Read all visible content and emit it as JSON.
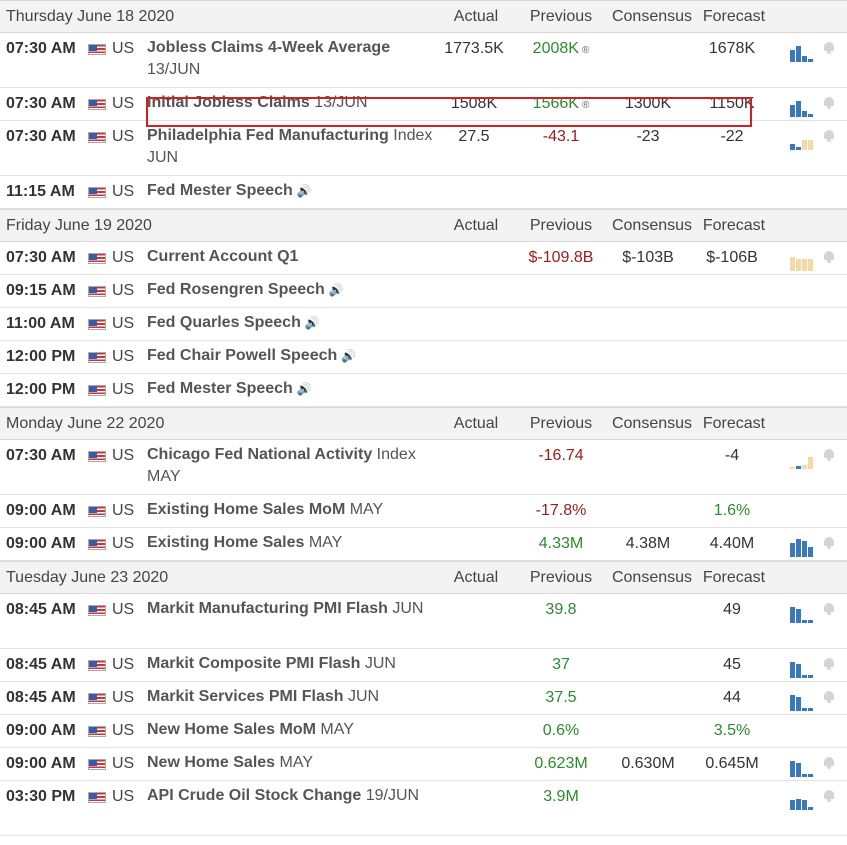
{
  "columns": {
    "actual": "Actual",
    "previous": "Previous",
    "consensus": "Consensus",
    "forecast": "Forecast"
  },
  "sections": [
    {
      "date": "Thursday June 18 2020",
      "rows": [
        {
          "time": "07:30 AM",
          "country": "US",
          "event": "Jobless Claims 4-Week Average",
          "period": "13/JUN",
          "actual": "1773.5K",
          "previous": "2008K",
          "previous_revised": true,
          "previous_sign": "pos",
          "consensus": "",
          "forecast": "1678K",
          "spark": "blue-desc",
          "tall": true
        },
        {
          "time": "07:30 AM",
          "country": "US",
          "event": "Initial Jobless Claims",
          "period": "13/JUN",
          "actual": "1508K",
          "previous": "1566K",
          "previous_revised": true,
          "previous_sign": "pos",
          "consensus": "1300K",
          "forecast": "1150K",
          "spark": "blue-desc",
          "tall": false,
          "highlighted": true
        },
        {
          "time": "07:30 AM",
          "country": "US",
          "event": "Philadelphia Fed Manufacturing",
          "period": "Index JUN",
          "actual": "27.5",
          "previous": "-43.1",
          "previous_sign": "neg",
          "consensus": "-23",
          "forecast": "-22",
          "spark": "beige",
          "tall": true
        },
        {
          "time": "11:15 AM",
          "country": "US",
          "event": "Fed Mester Speech",
          "speech": true,
          "tall": false
        }
      ]
    },
    {
      "date": "Friday June 19 2020",
      "rows": [
        {
          "time": "07:30 AM",
          "country": "US",
          "event": "Current Account Q1",
          "previous": "$-109.8B",
          "previous_sign": "neg",
          "consensus": "$-103B",
          "forecast": "$-106B",
          "spark": "beige-flat",
          "tall": false
        },
        {
          "time": "09:15 AM",
          "country": "US",
          "event": "Fed Rosengren Speech",
          "speech": true,
          "tall": false
        },
        {
          "time": "11:00 AM",
          "country": "US",
          "event": "Fed Quarles Speech",
          "speech": true,
          "tall": false
        },
        {
          "time": "12:00 PM",
          "country": "US",
          "event": "Fed Chair Powell Speech",
          "speech": true,
          "tall": false
        },
        {
          "time": "12:00 PM",
          "country": "US",
          "event": "Fed Mester Speech",
          "speech": true,
          "tall": false
        }
      ]
    },
    {
      "date": "Monday June 22 2020",
      "rows": [
        {
          "time": "07:30 AM",
          "country": "US",
          "event": "Chicago Fed National Activity",
          "period": "Index MAY",
          "previous": "-16.74",
          "previous_sign": "neg",
          "forecast": "-4",
          "spark": "beige-mixed",
          "tall": true
        },
        {
          "time": "09:00 AM",
          "country": "US",
          "event": "Existing Home Sales MoM",
          "period": "MAY",
          "previous": "-17.8%",
          "previous_sign": "neg",
          "forecast": "1.6%",
          "forecast_sign": "pos",
          "tall": false
        },
        {
          "time": "09:00 AM",
          "country": "US",
          "event": "Existing Home Sales",
          "period": "MAY",
          "previous": "4.33M",
          "previous_sign": "pos",
          "consensus": "4.38M",
          "forecast": "4.40M",
          "spark": "blue-high",
          "tall": false
        }
      ]
    },
    {
      "date": "Tuesday June 23 2020",
      "rows": [
        {
          "time": "08:45 AM",
          "country": "US",
          "event": "Markit Manufacturing PMI Flash",
          "period": "JUN",
          "previous": "39.8",
          "previous_sign": "pos",
          "forecast": "49",
          "spark": "blue-drop",
          "tall": true
        },
        {
          "time": "08:45 AM",
          "country": "US",
          "event": "Markit Composite PMI Flash",
          "period": "JUN",
          "previous": "37",
          "previous_sign": "pos",
          "forecast": "45",
          "spark": "blue-drop",
          "tall": false
        },
        {
          "time": "08:45 AM",
          "country": "US",
          "event": "Markit Services PMI Flash",
          "period": "JUN",
          "previous": "37.5",
          "previous_sign": "pos",
          "forecast": "44",
          "spark": "blue-drop",
          "tall": false
        },
        {
          "time": "09:00 AM",
          "country": "US",
          "event": "New Home Sales MoM",
          "period": "MAY",
          "previous": "0.6%",
          "previous_sign": "pos",
          "forecast": "3.5%",
          "forecast_sign": "pos",
          "tall": false
        },
        {
          "time": "09:00 AM",
          "country": "US",
          "event": "New Home Sales",
          "period": "MAY",
          "previous": "0.623M",
          "previous_sign": "pos",
          "consensus": "0.630M",
          "forecast": "0.645M",
          "spark": "blue-drop",
          "tall": false
        },
        {
          "time": "03:30 PM",
          "country": "US",
          "event": "API Crude Oil Stock Change",
          "period": "19/JUN",
          "previous": "3.9M",
          "previous_sign": "pos",
          "spark": "blue-small",
          "tall": true
        }
      ]
    }
  ],
  "icons": {
    "flag": "us-flag-icon",
    "bell": "bell-icon",
    "speaker": "speaker-icon",
    "revised": "®"
  },
  "colors": {
    "positive": "#2c8a2c",
    "negative": "#9b1b1b",
    "bar_blue": "#3a78b7",
    "bar_beige": "#f2d9a5",
    "highlight": "#d21f1f"
  }
}
